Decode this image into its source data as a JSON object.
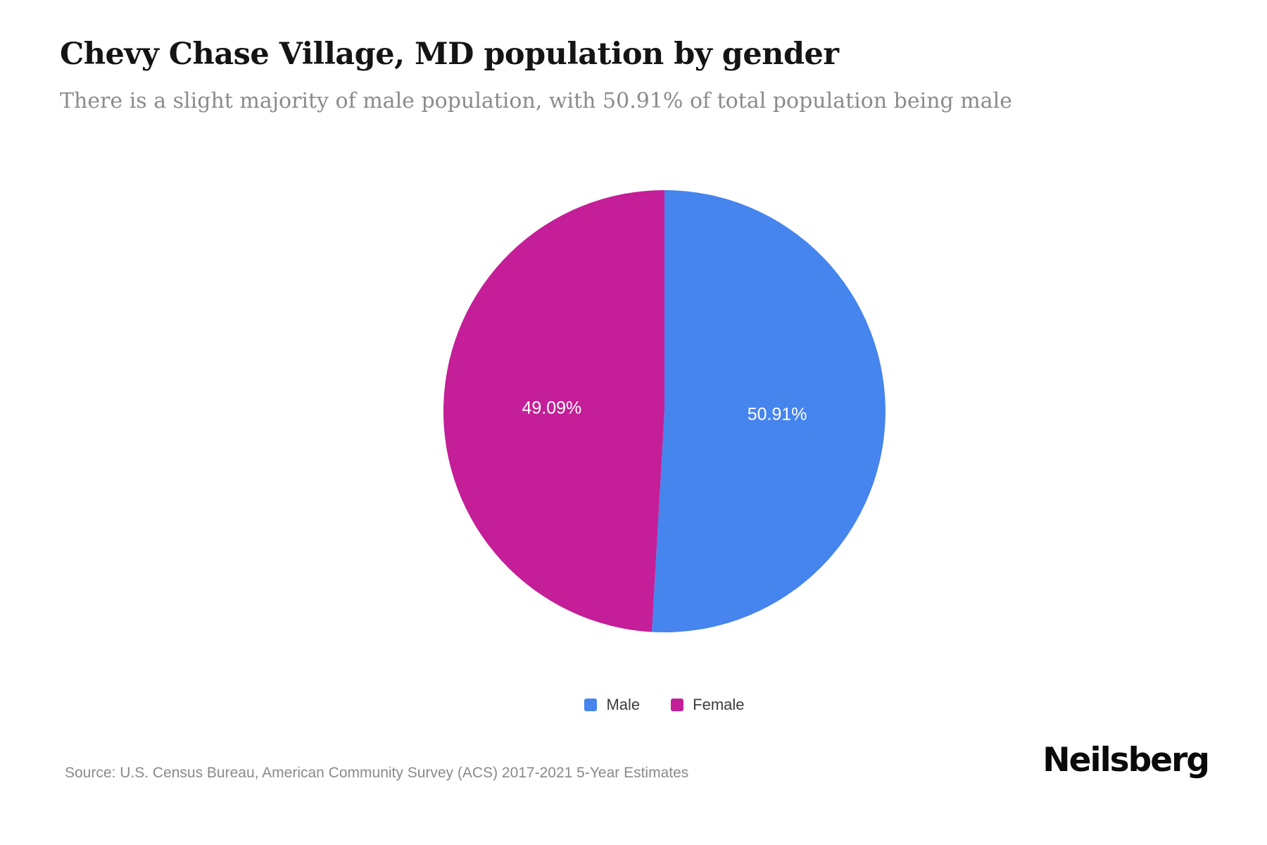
{
  "page": {
    "title": "Chevy Chase Village, MD population by gender",
    "subtitle": "There is a slight majority of male population, with 50.91% of total population being male",
    "source": "Source: U.S. Census Bureau, American Community Survey (ACS) 2017-2021 5-Year Estimates",
    "brand": "Neilsberg"
  },
  "chart_data": {
    "type": "pie",
    "title": "Chevy Chase Village, MD population by gender",
    "start_angle": "top",
    "direction": "clockwise",
    "label_color": "#ffffff",
    "label_radius_ratio": 0.51,
    "legend_position": "bottom",
    "slices": [
      {
        "label": "Male",
        "value": 50.91,
        "display": "50.91%",
        "color": "#4684EE"
      },
      {
        "label": "Female",
        "value": 49.09,
        "display": "49.09%",
        "color": "#C41E98"
      }
    ]
  }
}
